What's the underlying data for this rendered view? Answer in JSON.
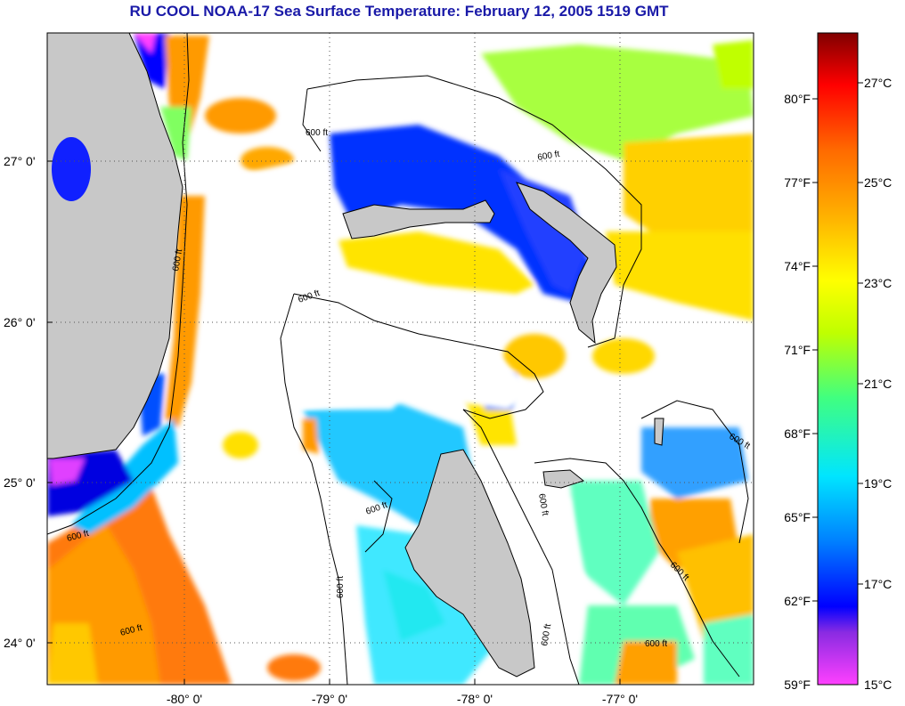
{
  "title": "RU COOL  NOAA-17  Sea Surface Temperature:  February 12, 2005 1519 GMT",
  "map": {
    "lat_ticks": [
      "27° 0'",
      "26° 0'",
      "25° 0'",
      "24° 0'"
    ],
    "lon_ticks": [
      "-80° 0'",
      "-79° 0'",
      "-78° 0'",
      "-77° 0'"
    ],
    "contour_label": "600 ft",
    "colors": {
      "land": "#c8c8c8",
      "coast": "#000000",
      "no_data": "#ffffff"
    }
  },
  "colorbar": {
    "fahrenheit_labels": [
      "80°F",
      "77°F",
      "74°F",
      "71°F",
      "68°F",
      "65°F",
      "62°F",
      "59°F"
    ],
    "celsius_labels": [
      "27°C",
      "25°C",
      "23°C",
      "21°C",
      "19°C",
      "17°C",
      "15°C"
    ],
    "gradient_colors": [
      "#ff40ff",
      "#8a2be2",
      "#0000ff",
      "#0080ff",
      "#00e5ff",
      "#40ff80",
      "#c0ff00",
      "#ffff00",
      "#ffb000",
      "#ff6a00",
      "#ff0000",
      "#800000"
    ]
  }
}
